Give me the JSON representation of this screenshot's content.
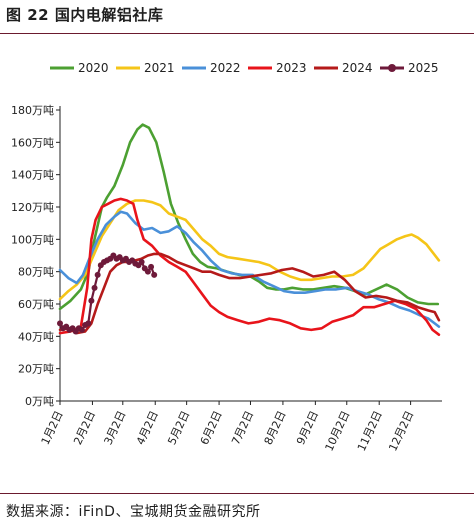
{
  "figure": {
    "title": "图 22 国内电解铝社库",
    "source": "数据来源：iFinD、宝城期货金融研究所"
  },
  "chart_data": {
    "type": "line",
    "title": "",
    "xlabel": "",
    "ylabel": "",
    "ylim": [
      0,
      180
    ],
    "y_ticks": [
      0,
      20,
      40,
      60,
      80,
      100,
      120,
      140,
      160,
      180
    ],
    "y_tick_labels": [
      "0万吨",
      "20万吨",
      "40万吨",
      "60万吨",
      "80万吨",
      "100万吨",
      "120万吨",
      "140万吨",
      "160万吨",
      "180万吨"
    ],
    "x_ticks": [
      0,
      31,
      60,
      91,
      121,
      152,
      182,
      213,
      244,
      274,
      305,
      335
    ],
    "x_tick_labels": [
      "1月2日",
      "2月2日",
      "3月2日",
      "4月2日",
      "5月2日",
      "6月2日",
      "7月2日",
      "8月2日",
      "9月2日",
      "10月2日",
      "11月2日",
      "12月2日"
    ],
    "grid": false,
    "legend": "top",
    "series": [
      {
        "name": "2020",
        "color": "#4ca032",
        "style": "line",
        "x": [
          0,
          10,
          20,
          27,
          33,
          40,
          45,
          52,
          60,
          67,
          74,
          79,
          85,
          92,
          99,
          106,
          113,
          120,
          127,
          134,
          141,
          150,
          160,
          171,
          182,
          190,
          198,
          206,
          214,
          222,
          232,
          242,
          252,
          262,
          272,
          282,
          292,
          302,
          312,
          322,
          332,
          342,
          352,
          361
        ],
        "y": [
          57,
          62,
          69,
          80,
          100,
          120,
          126,
          133,
          146,
          160,
          168,
          171,
          169,
          160,
          142,
          122,
          110,
          100,
          91,
          86,
          83,
          82,
          80,
          78,
          77,
          74,
          70,
          69,
          69,
          70,
          69,
          69,
          70,
          71,
          70,
          68,
          66,
          69,
          72,
          69,
          64,
          61,
          60,
          60
        ]
      },
      {
        "name": "2021",
        "color": "#f5c518",
        "style": "line",
        "x": [
          0,
          8,
          16,
          24,
          32,
          40,
          48,
          56,
          64,
          72,
          80,
          88,
          96,
          104,
          112,
          120,
          128,
          136,
          144,
          152,
          160,
          170,
          180,
          190,
          200,
          210,
          220,
          230,
          240,
          250,
          260,
          270,
          280,
          290,
          298,
          306,
          314,
          322,
          330,
          336,
          342,
          350,
          356,
          362
        ],
        "y": [
          63,
          68,
          72,
          78,
          90,
          102,
          110,
          118,
          122,
          124,
          124,
          123,
          121,
          116,
          114,
          112,
          106,
          100,
          96,
          91,
          89,
          88,
          87,
          86,
          84,
          80,
          77,
          75,
          75,
          76,
          77,
          77,
          78,
          82,
          88,
          94,
          97,
          100,
          102,
          103,
          101,
          97,
          92,
          87
        ]
      },
      {
        "name": "2022",
        "color": "#4a90d9",
        "style": "line",
        "x": [
          0,
          8,
          16,
          22,
          28,
          36,
          44,
          52,
          58,
          64,
          72,
          80,
          88,
          96,
          104,
          112,
          120,
          128,
          136,
          144,
          154,
          164,
          174,
          184,
          194,
          204,
          214,
          224,
          234,
          244,
          254,
          264,
          274,
          284,
          294,
          304,
          314,
          324,
          334,
          344,
          352,
          358,
          362
        ],
        "y": [
          81,
          76,
          73,
          78,
          88,
          100,
          109,
          114,
          117,
          116,
          110,
          106,
          107,
          104,
          105,
          108,
          104,
          98,
          93,
          87,
          81,
          79,
          78,
          78,
          74,
          71,
          68,
          67,
          67,
          68,
          69,
          69,
          70,
          68,
          66,
          63,
          61,
          58,
          56,
          53,
          51,
          48,
          46
        ]
      },
      {
        "name": "2023",
        "color": "#e8141b",
        "style": "line",
        "x": [
          0,
          10,
          20,
          26,
          30,
          34,
          40,
          46,
          52,
          58,
          64,
          70,
          74,
          80,
          88,
          96,
          104,
          112,
          120,
          128,
          136,
          144,
          152,
          160,
          170,
          180,
          190,
          200,
          210,
          220,
          230,
          240,
          250,
          260,
          270,
          280,
          290,
          300,
          310,
          320,
          330,
          340,
          350,
          356,
          362
        ],
        "y": [
          42,
          43,
          46,
          70,
          100,
          112,
          120,
          122,
          124,
          125,
          124,
          122,
          112,
          100,
          96,
          90,
          86,
          83,
          80,
          73,
          66,
          59,
          55,
          52,
          50,
          48,
          49,
          51,
          50,
          48,
          45,
          44,
          45,
          49,
          51,
          53,
          58,
          58,
          60,
          62,
          60,
          57,
          50,
          44,
          41
        ]
      },
      {
        "name": "2024",
        "color": "#b51a1a",
        "style": "line",
        "x": [
          0,
          8,
          16,
          24,
          30,
          36,
          42,
          48,
          54,
          60,
          66,
          72,
          78,
          84,
          90,
          96,
          104,
          112,
          120,
          128,
          136,
          144,
          152,
          162,
          172,
          182,
          192,
          202,
          212,
          222,
          232,
          242,
          252,
          262,
          272,
          282,
          292,
          302,
          312,
          322,
          332,
          342,
          352,
          358,
          362
        ],
        "y": [
          44,
          45,
          42,
          43,
          48,
          60,
          70,
          80,
          84,
          86,
          86,
          87,
          88,
          90,
          91,
          91,
          89,
          86,
          84,
          82,
          80,
          80,
          78,
          76,
          76,
          77,
          78,
          79,
          81,
          82,
          80,
          77,
          78,
          80,
          75,
          68,
          64,
          65,
          64,
          62,
          61,
          58,
          56,
          55,
          50
        ]
      },
      {
        "name": "2025",
        "color": "#6e1a3a",
        "style": "line-marker",
        "x": [
          0,
          3,
          6,
          9,
          12,
          15,
          18,
          21,
          24,
          27,
          30,
          33,
          36,
          39,
          42,
          45,
          48,
          51,
          54,
          57,
          60,
          63,
          66,
          69,
          72,
          75,
          78,
          81,
          84,
          87,
          90
        ],
        "y": [
          48,
          45,
          46,
          44,
          45,
          43,
          45,
          44,
          47,
          48,
          62,
          70,
          78,
          84,
          86,
          87,
          88,
          90,
          88,
          89,
          87,
          88,
          86,
          87,
          85,
          84,
          86,
          82,
          80,
          83,
          78
        ]
      }
    ]
  }
}
